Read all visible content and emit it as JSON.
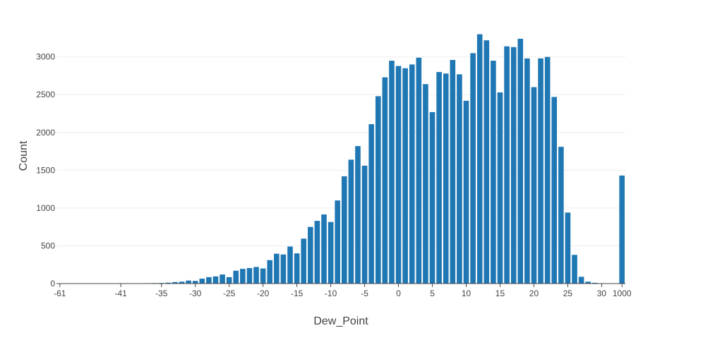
{
  "chart_data": {
    "type": "bar",
    "xlabel": "Dew_Point",
    "ylabel": "Count",
    "ylim": [
      0,
      3380
    ],
    "y_ticks": [
      0,
      500,
      1000,
      1500,
      2000,
      2500,
      3000
    ],
    "x_tick_labels": [
      "-61",
      "-41",
      "-35",
      "-30",
      "-25",
      "-20",
      "-15",
      "-10",
      "-5",
      "0",
      "5",
      "10",
      "15",
      "20",
      "25",
      "30",
      "1000"
    ],
    "grid": true,
    "color": "#1f77b4",
    "categories": [
      "-61",
      "-60",
      "-55",
      "-53",
      "-51",
      "-50",
      "-49",
      "-45",
      "-43",
      "-41",
      "-40",
      "-39",
      "-38",
      "-37",
      "-36",
      "-35",
      "-34",
      "-33",
      "-32",
      "-31",
      "-30",
      "-29",
      "-28",
      "-27",
      "-26",
      "-25",
      "-24",
      "-23",
      "-22",
      "-21",
      "-20",
      "-19",
      "-18",
      "-17",
      "-16",
      "-15",
      "-14",
      "-13",
      "-12",
      "-11",
      "-10",
      "-9",
      "-8",
      "-7",
      "-6",
      "-5",
      "-4",
      "-3",
      "-2",
      "-1",
      "0",
      "1",
      "2",
      "3",
      "4",
      "5",
      "6",
      "7",
      "8",
      "9",
      "10",
      "11",
      "12",
      "13",
      "14",
      "15",
      "16",
      "17",
      "18",
      "19",
      "20",
      "21",
      "22",
      "23",
      "24",
      "25",
      "26",
      "27",
      "28",
      "29",
      "30",
      "31",
      "32",
      "1000"
    ],
    "values": [
      1,
      1,
      1,
      1,
      1,
      1,
      1,
      2,
      2,
      3,
      3,
      3,
      4,
      5,
      6,
      8,
      12,
      20,
      25,
      40,
      35,
      65,
      85,
      95,
      120,
      85,
      170,
      195,
      205,
      220,
      200,
      310,
      395,
      385,
      490,
      400,
      595,
      750,
      830,
      915,
      815,
      1100,
      1420,
      1640,
      1820,
      1560,
      2110,
      2480,
      2730,
      2950,
      2880,
      2850,
      2900,
      2990,
      2640,
      2270,
      2800,
      2780,
      2960,
      2770,
      2420,
      3050,
      3300,
      3220,
      2950,
      2530,
      3140,
      3130,
      3240,
      2980,
      2600,
      2980,
      3000,
      2470,
      1810,
      940,
      380,
      90,
      25,
      10,
      5,
      3,
      2,
      1430
    ]
  }
}
